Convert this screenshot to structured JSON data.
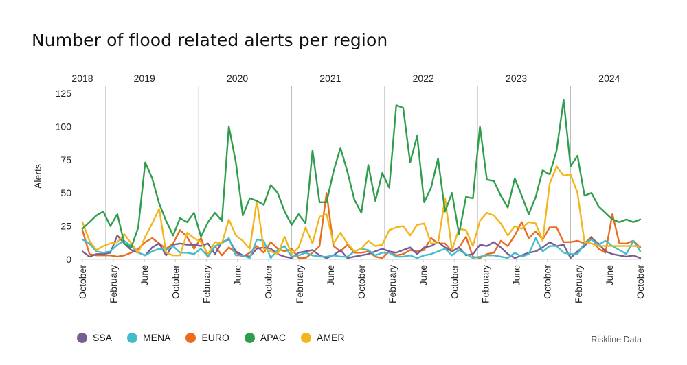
{
  "chart_data": {
    "type": "line",
    "title": "Number of flood related alerts per region",
    "ylabel": "Alerts",
    "xlabel": "",
    "ylim": [
      0,
      125
    ],
    "yticks": [
      0,
      25,
      50,
      75,
      100,
      125
    ],
    "x_start": "2018-10",
    "x_end": "2024-10",
    "year_labels": [
      {
        "label": "2018",
        "month": "2018-10"
      },
      {
        "label": "2019",
        "month": "2019-06"
      },
      {
        "label": "2020",
        "month": "2020-06"
      },
      {
        "label": "2021",
        "month": "2021-06"
      },
      {
        "label": "2022",
        "month": "2022-06"
      },
      {
        "label": "2023",
        "month": "2023-06"
      },
      {
        "label": "2024",
        "month": "2024-06"
      }
    ],
    "year_boundaries": [
      "2019-01",
      "2020-01",
      "2021-01",
      "2022-01",
      "2023-01",
      "2024-01"
    ],
    "month_ticks": [
      {
        "label": "October",
        "month": "2018-10"
      },
      {
        "label": "February",
        "month": "2019-02"
      },
      {
        "label": "June",
        "month": "2019-06"
      },
      {
        "label": "October",
        "month": "2019-10"
      },
      {
        "label": "February",
        "month": "2020-02"
      },
      {
        "label": "June",
        "month": "2020-06"
      },
      {
        "label": "October",
        "month": "2020-10"
      },
      {
        "label": "February",
        "month": "2021-02"
      },
      {
        "label": "June",
        "month": "2021-06"
      },
      {
        "label": "October",
        "month": "2021-10"
      },
      {
        "label": "February",
        "month": "2022-02"
      },
      {
        "label": "June",
        "month": "2022-06"
      },
      {
        "label": "October",
        "month": "2022-10"
      },
      {
        "label": "February",
        "month": "2023-02"
      },
      {
        "label": "June",
        "month": "2023-06"
      },
      {
        "label": "October",
        "month": "2023-10"
      },
      {
        "label": "February",
        "month": "2024-02"
      },
      {
        "label": "June",
        "month": "2024-06"
      },
      {
        "label": "October",
        "month": "2024-10"
      }
    ],
    "grid": "vertical at year boundaries, horizontal baseline",
    "legend_position": "bottom-left",
    "series": [
      {
        "name": "SSA",
        "color": "#7a5c94",
        "values": [
          6,
          2,
          4,
          4,
          5,
          18,
          12,
          7,
          5,
          3,
          9,
          12,
          3,
          11,
          12,
          11,
          11,
          10,
          12,
          4,
          13,
          15,
          6,
          3,
          2,
          8,
          9,
          8,
          4,
          2,
          1,
          5,
          6,
          7,
          3,
          1,
          3,
          7,
          1,
          2,
          3,
          4,
          6,
          8,
          6,
          5,
          7,
          9,
          4,
          9,
          10,
          13,
          9,
          6,
          9,
          3,
          4,
          11,
          10,
          13,
          9,
          4,
          1,
          3,
          5,
          6,
          9,
          13,
          10,
          11,
          1,
          6,
          10,
          16,
          12,
          6,
          4,
          3,
          2,
          3,
          1
        ]
      },
      {
        "name": "MENA",
        "color": "#45bcc9",
        "values": [
          15,
          12,
          6,
          5,
          6,
          11,
          14,
          10,
          5,
          3,
          6,
          8,
          7,
          10,
          5,
          5,
          4,
          8,
          2,
          10,
          12,
          16,
          3,
          3,
          1,
          15,
          14,
          1,
          7,
          10,
          2,
          3,
          5,
          3,
          2,
          2,
          3,
          2,
          2,
          6,
          8,
          7,
          3,
          5,
          5,
          2,
          2,
          3,
          1,
          3,
          4,
          6,
          8,
          3,
          7,
          4,
          1,
          2,
          3,
          3,
          2,
          1,
          5,
          2,
          4,
          16,
          6,
          10,
          10,
          5,
          4,
          4,
          12,
          15,
          11,
          14,
          10,
          7,
          4,
          14,
          6
        ]
      },
      {
        "name": "EURO",
        "color": "#ea6c1f",
        "values": [
          22,
          4,
          3,
          3,
          3,
          2,
          3,
          5,
          8,
          13,
          16,
          12,
          8,
          12,
          22,
          17,
          8,
          16,
          2,
          10,
          3,
          9,
          5,
          2,
          5,
          10,
          5,
          13,
          8,
          6,
          8,
          1,
          1,
          5,
          10,
          50,
          10,
          6,
          11,
          5,
          5,
          6,
          2,
          1,
          6,
          3,
          4,
          7,
          6,
          7,
          16,
          12,
          12,
          6,
          9,
          17,
          2,
          1,
          4,
          5,
          14,
          10,
          18,
          28,
          16,
          21,
          15,
          24,
          24,
          13,
          13,
          14,
          12,
          17,
          8,
          5,
          34,
          12,
          12,
          14,
          9
        ]
      },
      {
        "name": "APAC",
        "color": "#2f9e4c",
        "values": [
          23,
          28,
          33,
          36,
          25,
          34,
          12,
          9,
          24,
          73,
          61,
          42,
          29,
          18,
          31,
          28,
          35,
          17,
          28,
          35,
          29,
          100,
          73,
          33,
          46,
          44,
          41,
          56,
          50,
          36,
          26,
          34,
          27,
          82,
          43,
          43,
          66,
          84,
          66,
          45,
          35,
          71,
          44,
          65,
          54,
          116,
          114,
          73,
          93,
          43,
          54,
          76,
          36,
          50,
          19,
          47,
          46,
          100,
          60,
          59,
          48,
          39,
          61,
          48,
          34,
          47,
          67,
          64,
          82,
          120,
          70,
          78,
          48,
          50,
          40,
          35,
          30,
          28,
          30,
          28,
          30
        ]
      },
      {
        "name": "AMER",
        "color": "#f2b51c",
        "values": [
          28,
          14,
          7,
          10,
          12,
          13,
          19,
          12,
          5,
          17,
          27,
          38,
          5,
          3,
          3,
          20,
          16,
          13,
          4,
          13,
          12,
          30,
          18,
          14,
          8,
          44,
          8,
          6,
          4,
          17,
          4,
          9,
          24,
          12,
          32,
          34,
          12,
          20,
          12,
          6,
          8,
          14,
          10,
          11,
          22,
          24,
          25,
          18,
          26,
          27,
          12,
          12,
          46,
          7,
          23,
          22,
          10,
          29,
          35,
          33,
          27,
          18,
          25,
          23,
          28,
          27,
          14,
          57,
          70,
          63,
          64,
          50,
          13,
          12,
          10,
          10,
          10,
          10,
          10,
          10,
          10
        ]
      }
    ]
  },
  "legend": {
    "items": [
      {
        "label": "SSA",
        "color": "#7a5c94"
      },
      {
        "label": "MENA",
        "color": "#45bcc9"
      },
      {
        "label": "EURO",
        "color": "#ea6c1f"
      },
      {
        "label": "APAC",
        "color": "#2f9e4c"
      },
      {
        "label": "AMER",
        "color": "#f2b51c"
      }
    ]
  },
  "source": "Riskline Data"
}
